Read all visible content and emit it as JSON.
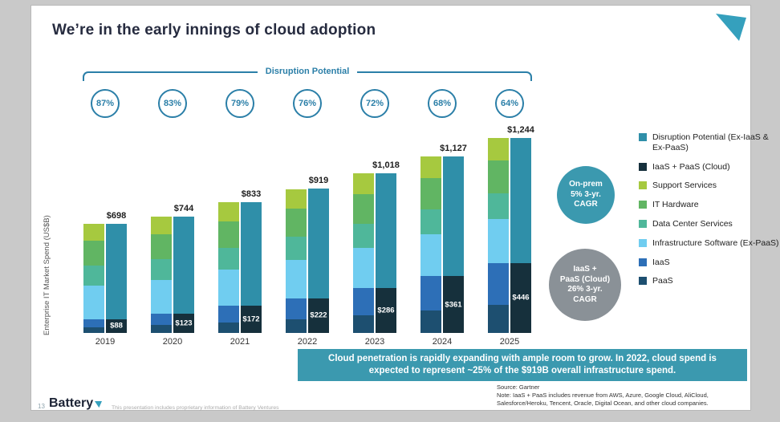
{
  "slide": {
    "title": "We’re in the early innings of cloud adoption",
    "page_number": "13",
    "brand": "Battery",
    "footer_note": "This presentation includes proprietary information of Battery Ventures",
    "source_line1": "Source: Gartner",
    "source_line2": "Note: IaaS + PaaS includes revenue from AWS, Azure, Google Cloud, AliCloud, Salesforce/Heroku, Tencent, Oracle, Digital Ocean, and other cloud companies."
  },
  "banner": {
    "text": "Cloud penetration is rapidly expanding with ample room to grow.  In 2022, cloud spend is expected to represent ~25% of the $919B overall infrastructure spend.",
    "bg": "#3b99af"
  },
  "callouts": {
    "onprem": {
      "text": "On-prem 5% 3-yr. CAGR",
      "lines": [
        "On-prem",
        "5% 3-yr.",
        "CAGR"
      ],
      "color": "#3b99af"
    },
    "cloud": {
      "text": "IaaS + PaaS (Cloud) 26% 3-yr. CAGR",
      "lines": [
        "IaaS +",
        "PaaS (Cloud)",
        "26% 3-yr.",
        "CAGR"
      ],
      "color": "#8a9197"
    }
  },
  "legend": {
    "items": [
      {
        "label": "Disruption Potential (Ex-IaaS & Ex-PaaS)",
        "color": "#2f8fa9"
      },
      {
        "label": "IaaS + PaaS (Cloud)",
        "color": "#16303c"
      },
      {
        "label": "Support Services",
        "color": "#a6c93f"
      },
      {
        "label": "IT Hardware",
        "color": "#61b563"
      },
      {
        "label": "Data Center Services",
        "color": "#4fb79a"
      },
      {
        "label": "Infrastructure Software (Ex-PaaS)",
        "color": "#70cdf0"
      },
      {
        "label": "IaaS",
        "color": "#2d6fb7"
      },
      {
        "label": "PaaS",
        "color": "#1d4f70"
      }
    ]
  },
  "chart_data": {
    "type": "bar",
    "title": "We’re in the early innings of cloud adoption",
    "ylabel": "Enterprise IT Market Spend (US$B)",
    "bracket_label": "Disruption Potential",
    "ylim": [
      0,
      1290
    ],
    "grid": false,
    "legend_position": "right",
    "categories": [
      "2019",
      "2020",
      "2021",
      "2022",
      "2023",
      "2024",
      "2025"
    ],
    "disruption_potential_pct": [
      "87%",
      "83%",
      "79%",
      "76%",
      "72%",
      "68%",
      "64%"
    ],
    "totals": [
      698,
      744,
      833,
      919,
      1018,
      1127,
      1244
    ],
    "total_labels": [
      "$698",
      "$744",
      "$833",
      "$919",
      "$1,018",
      "$1,127",
      "$1,244"
    ],
    "cloud_values": [
      88,
      123,
      172,
      222,
      286,
      361,
      446
    ],
    "cloud_labels": [
      "$88",
      "$123",
      "$172",
      "$222",
      "$286",
      "$361",
      "$446"
    ],
    "onprem_values": [
      610,
      621,
      661,
      697,
      732,
      766,
      798
    ],
    "stack_series_bottom_to_top": [
      {
        "name": "PaaS",
        "color": "#1d4f70",
        "values": [
          35,
          49,
          69,
          89,
          114,
          144,
          178
        ]
      },
      {
        "name": "IaaS",
        "color": "#2d6fb7",
        "values": [
          53,
          74,
          103,
          133,
          172,
          217,
          268
        ]
      },
      {
        "name": "Infrastructure Software (Ex-PaaS)",
        "color": "#70cdf0",
        "values": [
          214,
          217,
          231,
          244,
          256,
          268,
          279
        ]
      },
      {
        "name": "Data Center Services",
        "color": "#4fb79a",
        "values": [
          128,
          130,
          139,
          146,
          154,
          161,
          168
        ]
      },
      {
        "name": "IT Hardware",
        "color": "#61b563",
        "values": [
          159,
          161,
          172,
          181,
          190,
          199,
          207
        ]
      },
      {
        "name": "Support Services",
        "color": "#a6c93f",
        "values": [
          109,
          113,
          119,
          126,
          132,
          138,
          144
        ]
      }
    ],
    "right_bar": {
      "disruption_color": "#2f8fa9",
      "cloud_color": "#16303c"
    }
  }
}
